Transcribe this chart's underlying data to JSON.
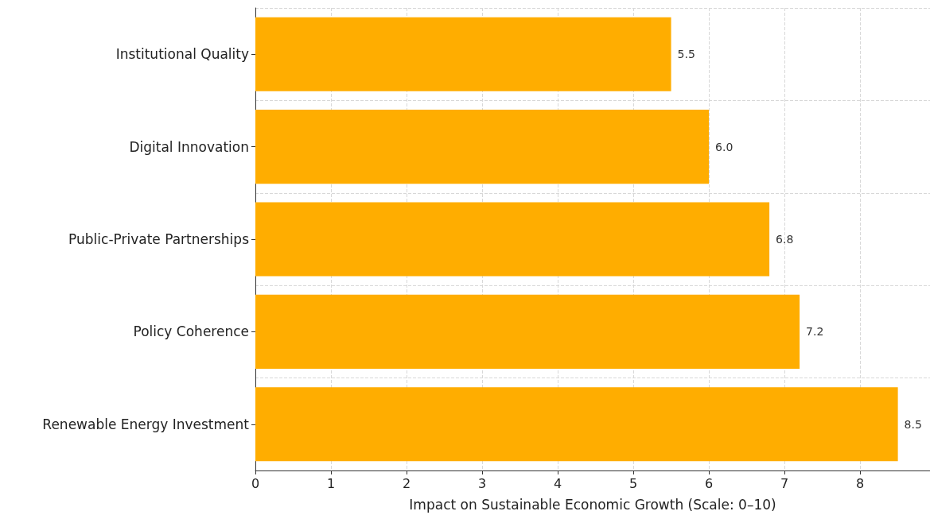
{
  "chart_data": {
    "type": "bar",
    "orientation": "horizontal",
    "xlabel": "Impact on Sustainable Economic Growth (Scale: 0–10)",
    "categories": [
      "Institutional Quality",
      "Digital Innovation",
      "Public-Private Partnerships",
      "Policy Coherence",
      "Renewable Energy Investment"
    ],
    "values": [
      5.5,
      6.0,
      6.8,
      7.2,
      8.5
    ],
    "value_labels": [
      "5.5",
      "6.0",
      "6.8",
      "7.2",
      "8.5"
    ],
    "color": "#ffad00",
    "xlim": [
      0,
      8.925
    ],
    "xticks": [
      0,
      1,
      2,
      3,
      4,
      5,
      6,
      7,
      8
    ],
    "grid": true
  }
}
